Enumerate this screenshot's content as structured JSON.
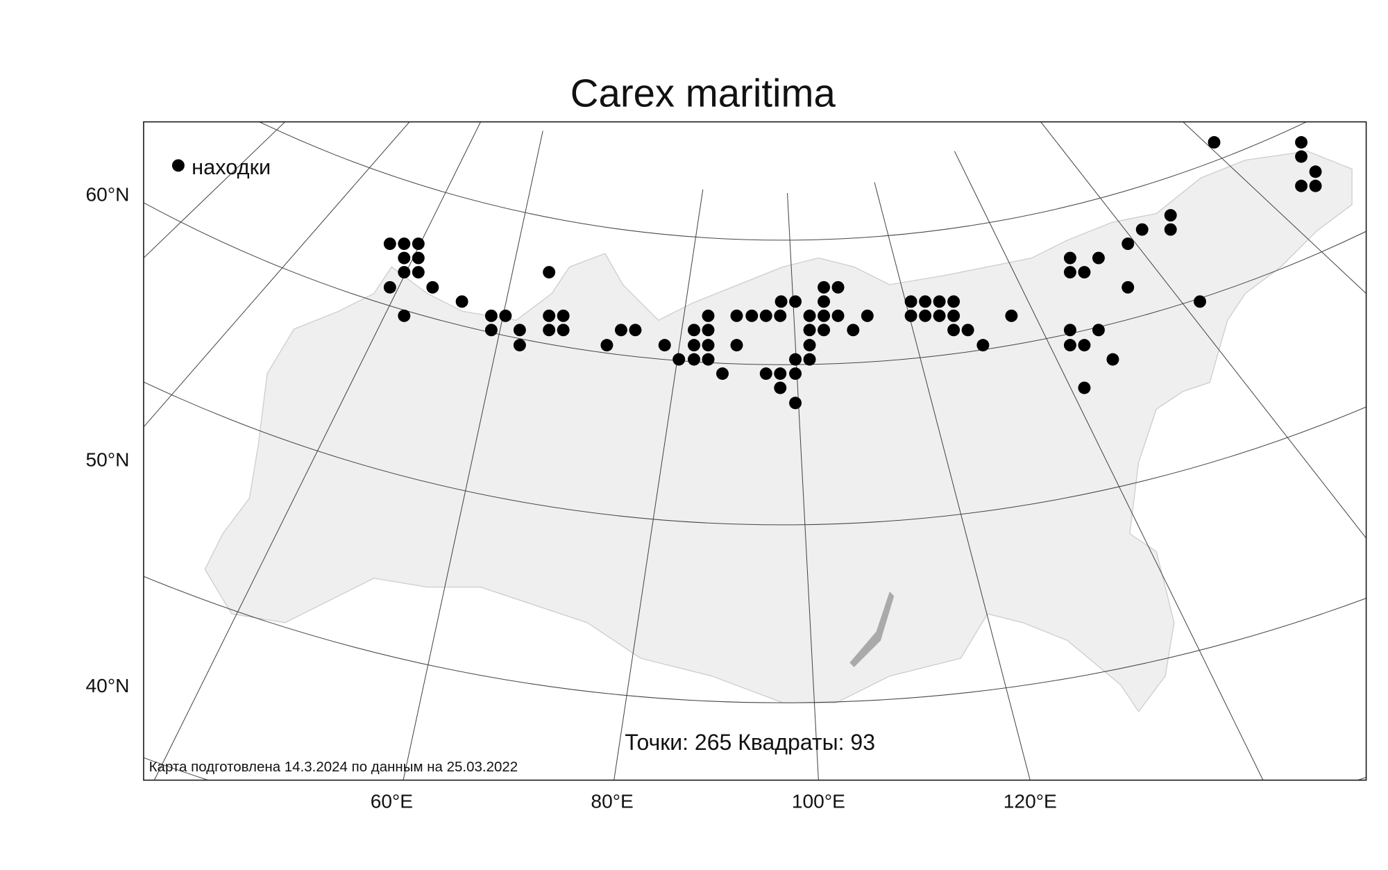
{
  "title": "Carex maritima",
  "legend": "находки",
  "lat_labels": [
    "60°N",
    "50°N",
    "40°N"
  ],
  "lon_labels": [
    "60°E",
    "80°E",
    "100°E",
    "120°E"
  ],
  "stats": "Точки: 265 Квадраты: 93",
  "credit": "Карта подготовлена 14.3.2024 по данным на 25.03.2022"
}
